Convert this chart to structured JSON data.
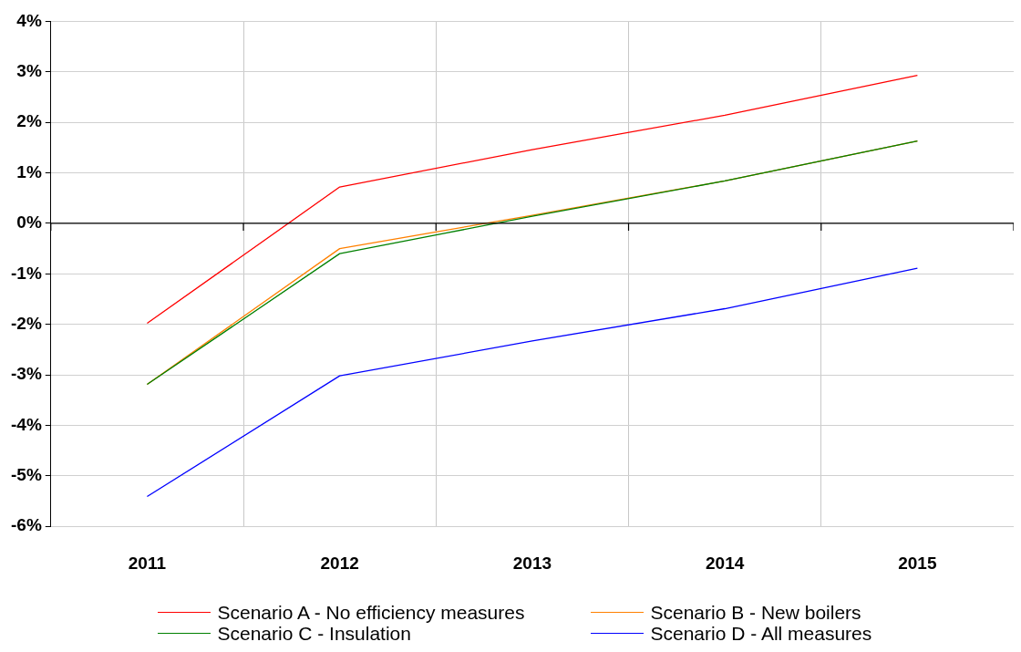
{
  "chart_data": {
    "type": "line",
    "categories": [
      "2011",
      "2012",
      "2013",
      "2014",
      "2015"
    ],
    "series": [
      {
        "name": "Scenario A - No efficiency measures",
        "color": "#ff0000",
        "values": [
          -1.98,
          0.72,
          1.46,
          2.14,
          2.93
        ]
      },
      {
        "name": "Scenario B - New boilers",
        "color": "#ff8000",
        "values": [
          -3.19,
          -0.5,
          0.16,
          0.84,
          1.63
        ]
      },
      {
        "name": "Scenario C - Insulation",
        "color": "#008000",
        "values": [
          -3.19,
          -0.6,
          0.14,
          0.84,
          1.63
        ]
      },
      {
        "name": "Scenario D - All measures",
        "color": "#0000ff",
        "values": [
          -5.41,
          -3.02,
          -2.33,
          -1.69,
          -0.89
        ]
      }
    ],
    "ylim": [
      -6,
      4
    ],
    "yticks": [
      {
        "value": -6,
        "label": "-6%"
      },
      {
        "value": -5,
        "label": "-5%"
      },
      {
        "value": -4,
        "label": "-4%"
      },
      {
        "value": -3,
        "label": "-3%"
      },
      {
        "value": -2,
        "label": "-2%"
      },
      {
        "value": -1,
        "label": "-1%"
      },
      {
        "value": 0,
        "label": "0%"
      },
      {
        "value": 1,
        "label": "1%"
      },
      {
        "value": 2,
        "label": "2%"
      },
      {
        "value": 3,
        "label": "3%"
      },
      {
        "value": 4,
        "label": "4%"
      }
    ],
    "ref_lines": [
      {
        "axis": "y",
        "value": 0,
        "color": "#000000"
      }
    ],
    "grid": true,
    "legend": "bottom",
    "marker": "none",
    "line_style": "solid"
  }
}
